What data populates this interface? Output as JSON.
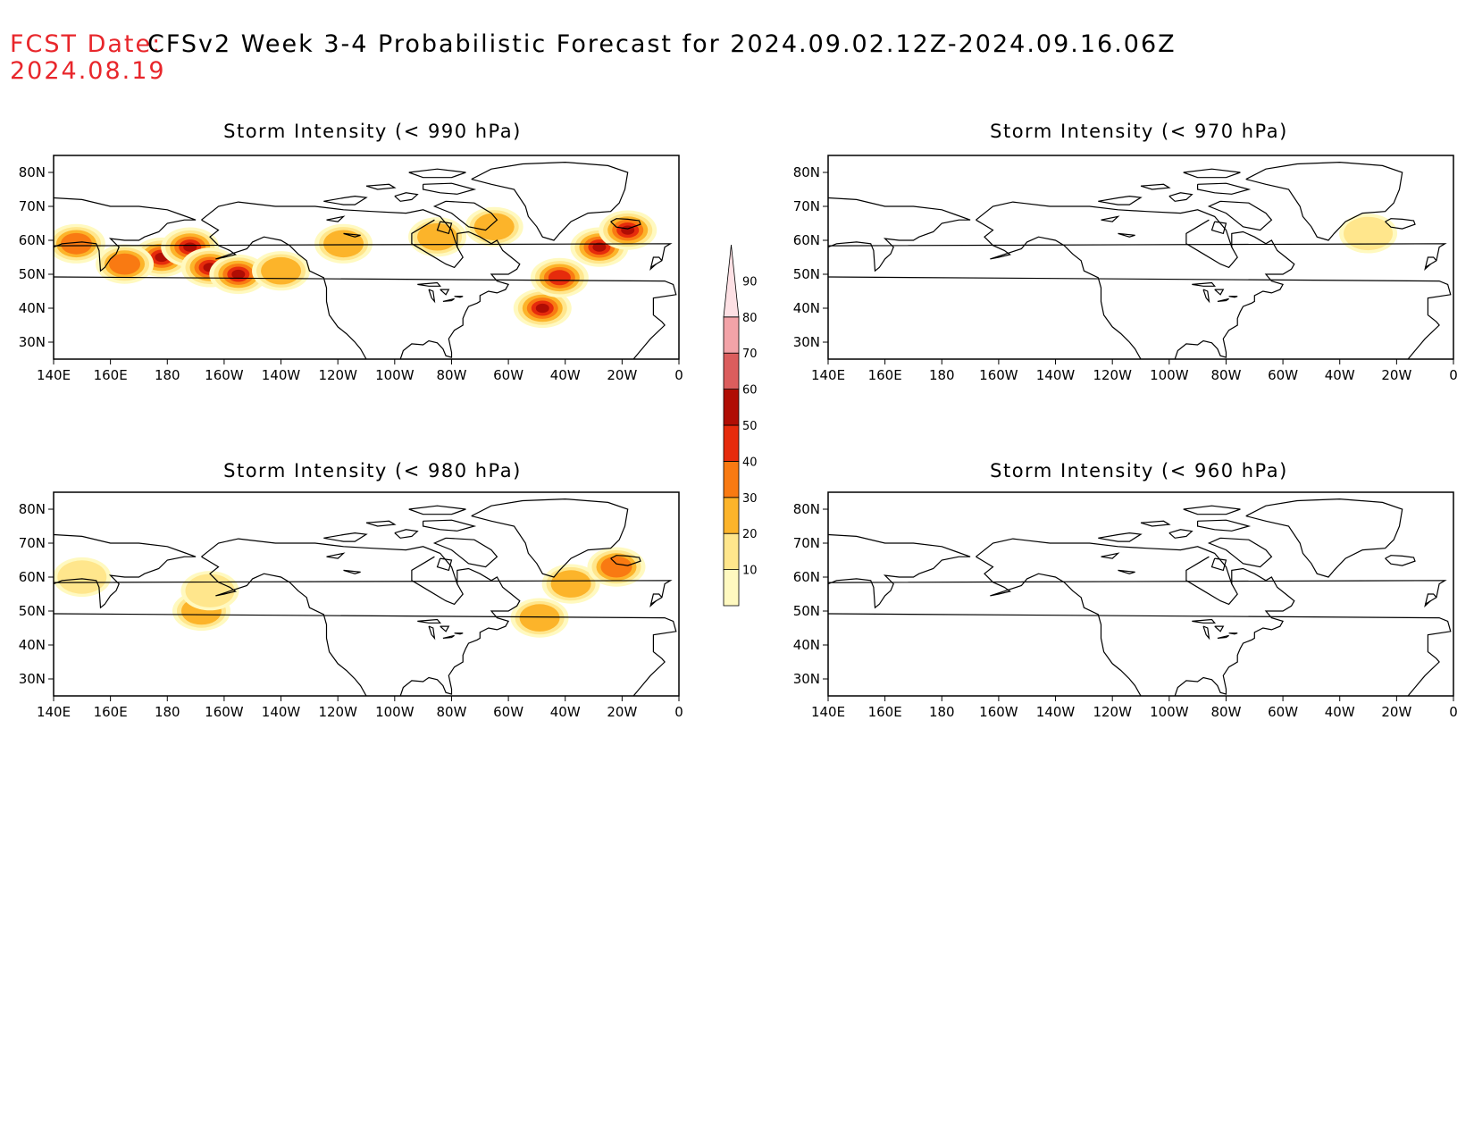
{
  "header": {
    "fcst_label": "FCST Date:",
    "title": "CFSv2 Week 3-4 Probabilistic Forecast for 2024.09.02.12Z-2024.09.16.06Z",
    "fcst_date": "2024.08.19"
  },
  "axis": {
    "lon_ticks": [
      "140E",
      "160E",
      "180",
      "160W",
      "140W",
      "120W",
      "100W",
      "80W",
      "60W",
      "40W",
      "20W",
      "0"
    ],
    "lat_ticks": [
      "80N",
      "70N",
      "60N",
      "50N",
      "40N",
      "30N"
    ]
  },
  "colorbar": {
    "levels": [
      "10",
      "20",
      "30",
      "40",
      "50",
      "60",
      "70",
      "80",
      "90"
    ],
    "colors": [
      "#fff9c0",
      "#ffe68c",
      "#fcb42a",
      "#f97a12",
      "#e62b0c",
      "#b00d04",
      "#db5d5d",
      "#f3a3a8",
      "#fde0e4"
    ]
  },
  "panels": [
    {
      "title": "Storm Intensity (< 990 hPa)",
      "blobs": [
        {
          "lon": 148,
          "lat": 59,
          "level": 3
        },
        {
          "lon": 178,
          "lat": 55,
          "level": 6
        },
        {
          "lon": -172,
          "lat": 58,
          "level": 6
        },
        {
          "lon": -165,
          "lat": 52,
          "level": 5
        },
        {
          "lon": -155,
          "lat": 50,
          "level": 6
        },
        {
          "lon": 165,
          "lat": 53,
          "level": 3
        },
        {
          "lon": -140,
          "lat": 51,
          "level": 2
        },
        {
          "lon": -118,
          "lat": 59,
          "level": 2
        },
        {
          "lon": -85,
          "lat": 61,
          "level": 2
        },
        {
          "lon": -65,
          "lat": 64,
          "level": 2
        },
        {
          "lon": -48,
          "lat": 40,
          "level": 6
        },
        {
          "lon": -42,
          "lat": 49,
          "level": 4
        },
        {
          "lon": -28,
          "lat": 58,
          "level": 5
        },
        {
          "lon": -18,
          "lat": 63,
          "level": 6
        }
      ]
    },
    {
      "title": "Storm Intensity (< 970 hPa)",
      "blobs": [
        {
          "lon": -30,
          "lat": 62,
          "level": 1
        }
      ]
    },
    {
      "title": "Storm Intensity (< 980 hPa)",
      "blobs": [
        {
          "lon": -168,
          "lat": 50,
          "level": 2
        },
        {
          "lon": -165,
          "lat": 56,
          "level": 1
        },
        {
          "lon": 150,
          "lat": 60,
          "level": 1
        },
        {
          "lon": -38,
          "lat": 58,
          "level": 2
        },
        {
          "lon": -22,
          "lat": 63,
          "level": 3
        },
        {
          "lon": -49,
          "lat": 48,
          "level": 2
        }
      ]
    },
    {
      "title": "Storm Intensity (< 960 hPa)",
      "blobs": []
    }
  ]
}
